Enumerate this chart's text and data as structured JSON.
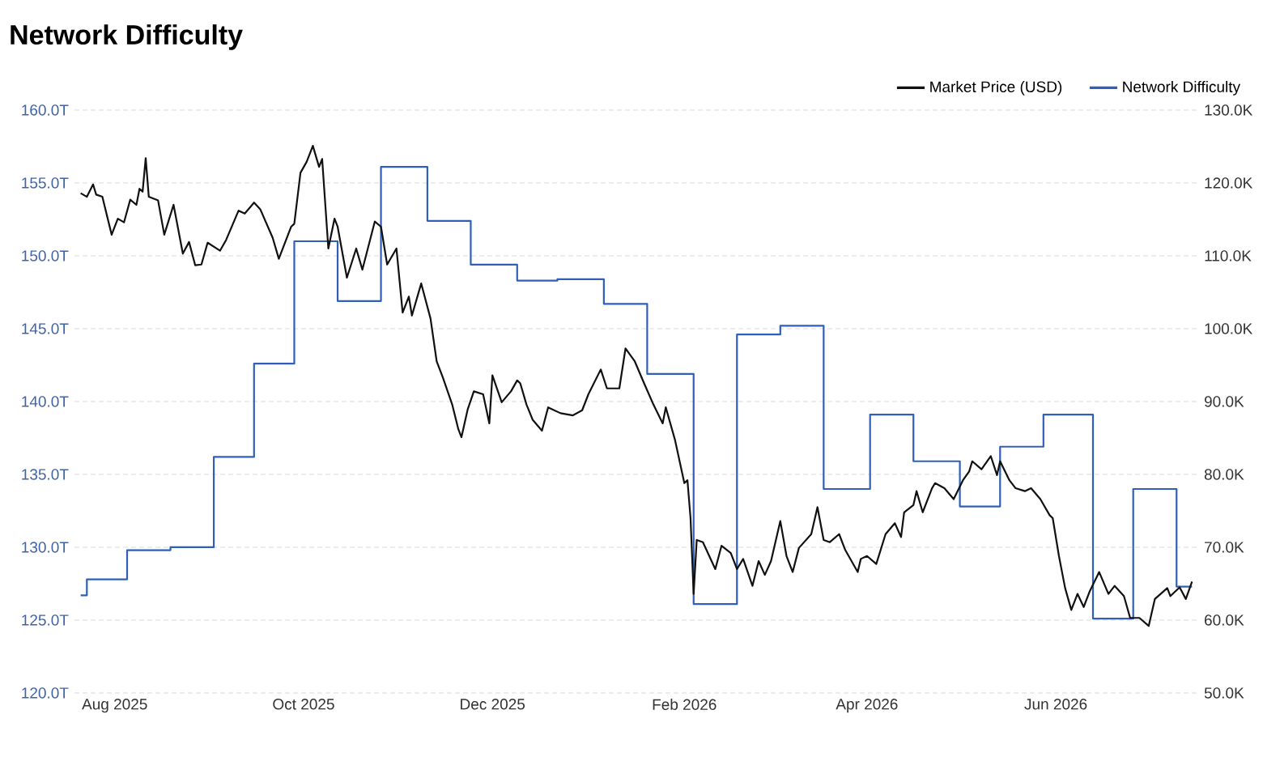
{
  "chart_data": {
    "type": "line",
    "title": "Network Difficulty",
    "xlim": [
      "2025-07-19",
      "2026-07-17"
    ],
    "xticks": [
      {
        "value": "2025-08-01",
        "label": "Aug 2025"
      },
      {
        "value": "2025-10-01",
        "label": "Oct 2025"
      },
      {
        "value": "2025-12-01",
        "label": "Dec 2025"
      },
      {
        "value": "2026-02-01",
        "label": "Feb 2026"
      },
      {
        "value": "2026-04-01",
        "label": "Apr 2026"
      },
      {
        "value": "2026-06-01",
        "label": "Jun 2026"
      }
    ],
    "ylim": [
      120,
      160
    ],
    "yticks": [
      {
        "value": 120,
        "label": "120.0T"
      },
      {
        "value": 125,
        "label": "125.0T"
      },
      {
        "value": 130,
        "label": "130.0T"
      },
      {
        "value": 135,
        "label": "135.0T"
      },
      {
        "value": 140,
        "label": "140.0T"
      },
      {
        "value": 145,
        "label": "145.0T"
      },
      {
        "value": 150,
        "label": "150.0T"
      },
      {
        "value": 155,
        "label": "155.0T"
      },
      {
        "value": 160,
        "label": "160.0T"
      }
    ],
    "y2lim": [
      50,
      130
    ],
    "y2ticks": [
      {
        "value": 50,
        "label": "50.0K"
      },
      {
        "value": 60,
        "label": "60.0K"
      },
      {
        "value": 70,
        "label": "70.0K"
      },
      {
        "value": 80,
        "label": "80.0K"
      },
      {
        "value": 90,
        "label": "90.0K"
      },
      {
        "value": 100,
        "label": "100.0K"
      },
      {
        "value": 110,
        "label": "110.0K"
      },
      {
        "value": 120,
        "label": "120.0K"
      },
      {
        "value": 130,
        "label": "130.0K"
      }
    ],
    "grid": "y",
    "legend": "top right",
    "series": [
      {
        "name": "Market Price (USD)",
        "axis": "y2",
        "color": "#111111",
        "x": [
          "2025-07-21",
          "2025-07-23",
          "2025-07-25",
          "2025-07-26",
          "2025-07-28",
          "2025-07-31",
          "2025-08-02",
          "2025-08-04",
          "2025-08-06",
          "2025-08-08",
          "2025-08-09",
          "2025-08-10",
          "2025-08-11",
          "2025-08-12",
          "2025-08-15",
          "2025-08-17",
          "2025-08-20",
          "2025-08-23",
          "2025-08-25",
          "2025-08-27",
          "2025-08-29",
          "2025-08-31",
          "2025-09-04",
          "2025-09-06",
          "2025-09-10",
          "2025-09-12",
          "2025-09-15",
          "2025-09-17",
          "2025-09-21",
          "2025-09-23",
          "2025-09-27",
          "2025-09-28",
          "2025-09-30",
          "2025-10-02",
          "2025-10-04",
          "2025-10-06",
          "2025-10-07",
          "2025-10-09",
          "2025-10-11",
          "2025-10-12",
          "2025-10-15",
          "2025-10-18",
          "2025-10-20",
          "2025-10-24",
          "2025-10-26",
          "2025-10-28",
          "2025-10-31",
          "2025-11-02",
          "2025-11-04",
          "2025-11-05",
          "2025-11-08",
          "2025-11-11",
          "2025-11-13",
          "2025-11-15",
          "2025-11-18",
          "2025-11-20",
          "2025-11-21",
          "2025-11-23",
          "2025-11-25",
          "2025-11-28",
          "2025-11-30",
          "2025-12-01",
          "2025-12-04",
          "2025-12-07",
          "2025-12-09",
          "2025-12-10",
          "2025-12-12",
          "2025-12-14",
          "2025-12-17",
          "2025-12-19",
          "2025-12-23",
          "2025-12-27",
          "2025-12-30",
          "2026-01-01",
          "2026-01-05",
          "2026-01-07",
          "2026-01-11",
          "2026-01-13",
          "2026-01-16",
          "2026-01-19",
          "2026-01-22",
          "2026-01-25",
          "2026-01-26",
          "2026-01-29",
          "2026-02-01",
          "2026-02-02",
          "2026-02-03",
          "2026-02-04",
          "2026-02-05",
          "2026-02-07",
          "2026-02-11",
          "2026-02-13",
          "2026-02-16",
          "2026-02-18",
          "2026-02-20",
          "2026-02-23",
          "2026-02-25",
          "2026-02-27",
          "2026-03-01",
          "2026-03-04",
          "2026-03-06",
          "2026-03-08",
          "2026-03-10",
          "2026-03-14",
          "2026-03-16",
          "2026-03-18",
          "2026-03-20",
          "2026-03-23",
          "2026-03-25",
          "2026-03-29",
          "2026-03-30",
          "2026-04-01",
          "2026-04-04",
          "2026-04-07",
          "2026-04-10",
          "2026-04-12",
          "2026-04-13",
          "2026-04-16",
          "2026-04-17",
          "2026-04-19",
          "2026-04-22",
          "2026-04-23",
          "2026-04-26",
          "2026-04-29",
          "2026-05-02",
          "2026-05-04",
          "2026-05-05",
          "2026-05-08",
          "2026-05-11",
          "2026-05-13",
          "2026-05-14",
          "2026-05-17",
          "2026-05-19",
          "2026-05-22",
          "2026-05-24",
          "2026-05-27",
          "2026-05-30",
          "2026-05-31",
          "2026-06-02",
          "2026-06-04",
          "2026-06-06",
          "2026-06-08",
          "2026-06-10",
          "2026-06-12",
          "2026-06-15",
          "2026-06-18",
          "2026-06-20",
          "2026-06-23",
          "2026-06-25",
          "2026-06-28",
          "2026-07-01",
          "2026-07-03",
          "2026-07-07",
          "2026-07-08",
          "2026-07-11",
          "2026-07-13",
          "2026-07-15"
        ],
        "values": [
          118.6,
          118.1,
          119.8,
          118.4,
          118.1,
          112.9,
          115.1,
          114.6,
          117.7,
          117.0,
          119.2,
          118.8,
          123.4,
          118.1,
          117.6,
          112.9,
          117.0,
          110.3,
          111.9,
          108.7,
          108.8,
          111.8,
          110.7,
          112.2,
          116.2,
          115.8,
          117.3,
          116.4,
          112.5,
          109.6,
          114.0,
          114.4,
          121.4,
          122.9,
          125.1,
          122.2,
          123.3,
          111.0,
          115.1,
          114.0,
          107.0,
          111.0,
          108.1,
          114.7,
          114.0,
          108.8,
          111.0,
          102.2,
          104.4,
          101.8,
          106.2,
          101.4,
          95.5,
          93.3,
          89.6,
          86.2,
          85.1,
          88.9,
          91.4,
          91.0,
          87.0,
          93.6,
          89.9,
          91.4,
          92.9,
          92.5,
          89.6,
          87.5,
          86.0,
          89.2,
          88.4,
          88.1,
          88.8,
          91.0,
          94.4,
          91.8,
          91.8,
          97.3,
          95.5,
          92.5,
          89.6,
          87.0,
          89.2,
          84.7,
          78.8,
          79.2,
          74.0,
          63.6,
          71.0,
          70.7,
          67.0,
          70.2,
          69.2,
          67.0,
          68.4,
          64.7,
          68.1,
          66.2,
          68.1,
          73.6,
          68.8,
          66.6,
          69.9,
          71.8,
          75.5,
          71.0,
          70.7,
          71.8,
          69.6,
          66.6,
          68.4,
          68.8,
          67.7,
          71.8,
          73.3,
          71.4,
          74.8,
          75.8,
          77.7,
          74.8,
          78.1,
          78.8,
          78.1,
          76.6,
          79.2,
          80.4,
          81.8,
          80.7,
          82.5,
          79.9,
          81.8,
          79.2,
          78.1,
          77.7,
          78.1,
          76.6,
          74.4,
          74.0,
          68.8,
          64.4,
          61.4,
          63.6,
          61.8,
          64.0,
          66.6,
          63.6,
          64.7,
          63.3,
          60.3,
          60.3,
          59.2,
          62.9,
          64.4,
          63.3,
          64.5,
          62.9,
          65.3
        ]
      },
      {
        "name": "Network Difficulty",
        "type": "step",
        "color": "#2f5fb8",
        "x": [
          "2025-07-21",
          "2025-07-23",
          "2025-08-05",
          "2025-08-19",
          "2025-09-02",
          "2025-09-15",
          "2025-09-28",
          "2025-10-12",
          "2025-10-26",
          "2025-11-10",
          "2025-11-24",
          "2025-12-09",
          "2025-12-22",
          "2026-01-06",
          "2026-01-20",
          "2026-02-04",
          "2026-02-18",
          "2026-03-04",
          "2026-03-18",
          "2026-04-02",
          "2026-04-16",
          "2026-05-01",
          "2026-05-14",
          "2026-05-28",
          "2026-06-13",
          "2026-06-26",
          "2026-07-10",
          "2026-07-15"
        ],
        "values": [
          126.7,
          127.8,
          129.8,
          130.0,
          136.2,
          142.6,
          151.0,
          146.9,
          156.1,
          152.4,
          149.4,
          148.3,
          148.4,
          146.7,
          141.9,
          126.1,
          144.6,
          145.2,
          134.0,
          139.1,
          135.9,
          132.8,
          136.9,
          139.1,
          125.1,
          134.0,
          127.3,
          127.3
        ]
      }
    ]
  }
}
